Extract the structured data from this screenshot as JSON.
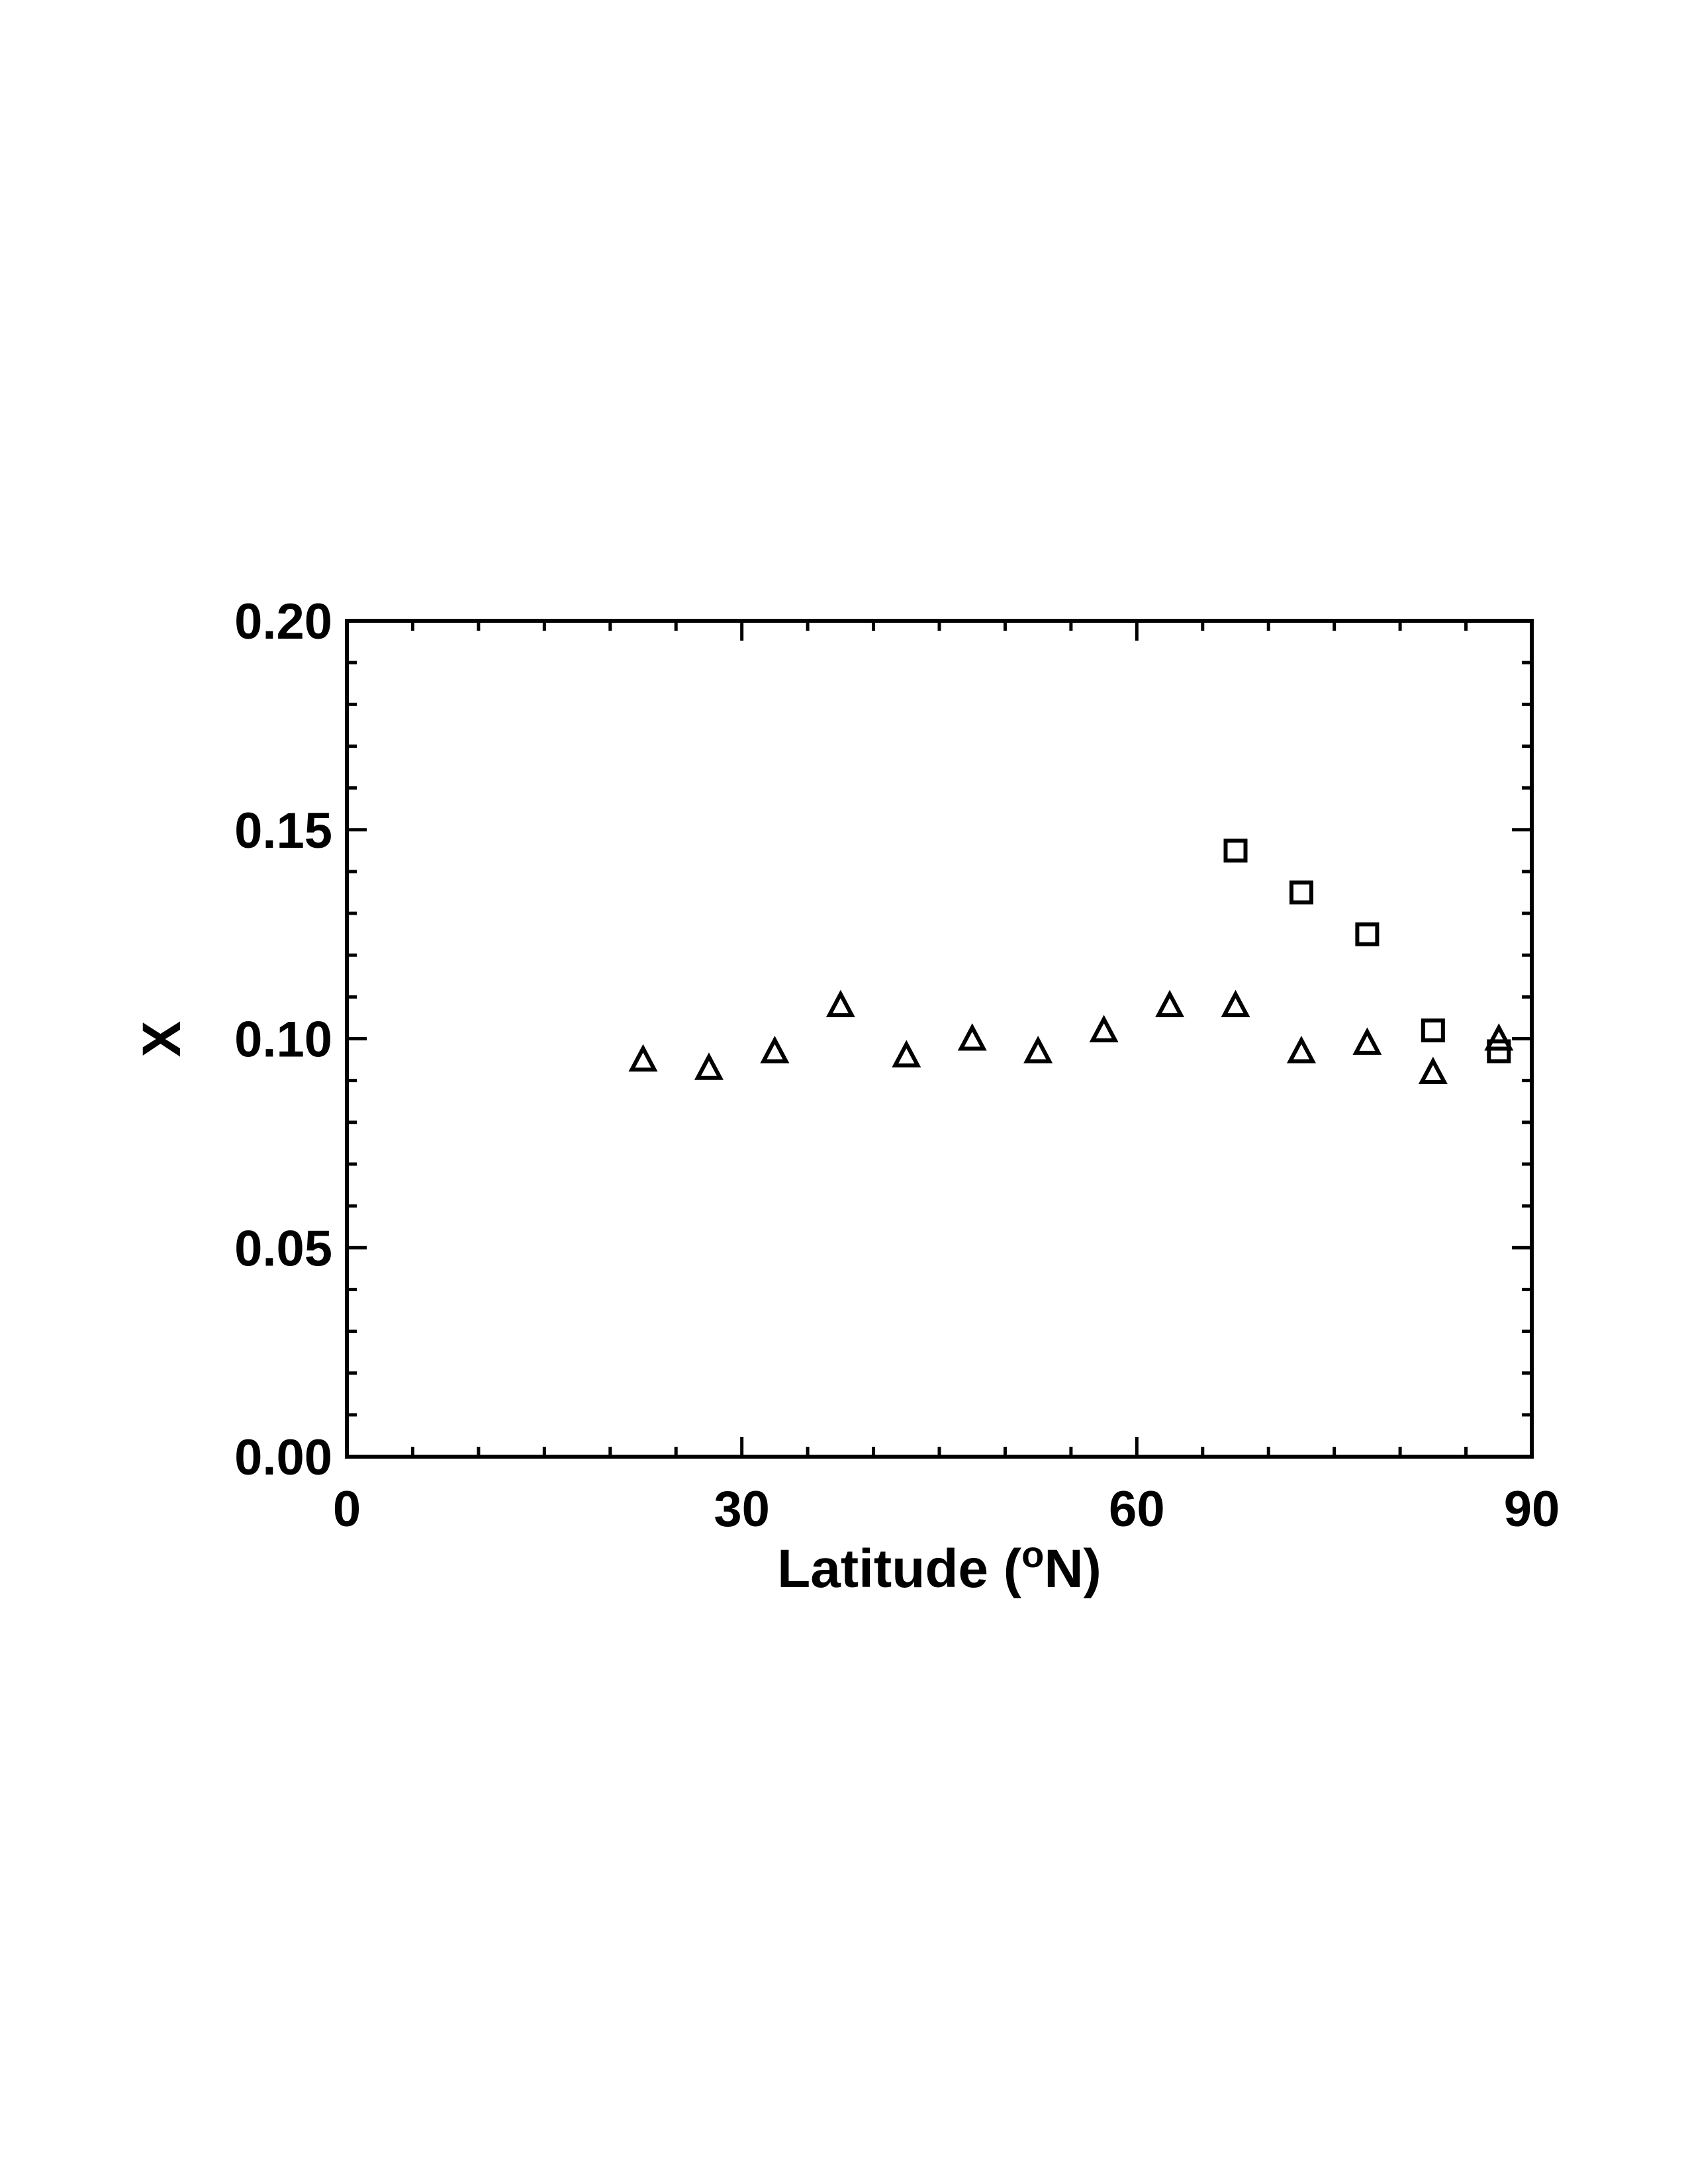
{
  "chart_data": {
    "type": "scatter",
    "xlabel": "Latitude (",
    "xlabel_degree": "o",
    "xlabel_suffix": "N)",
    "ylabel": "X",
    "xlim": [
      0,
      90
    ],
    "ylim": [
      0.0,
      0.2
    ],
    "x_ticks": [
      0,
      30,
      60,
      90
    ],
    "x_tick_labels": [
      "0",
      "30",
      "60",
      "90"
    ],
    "x_minor_step": 5,
    "y_ticks": [
      0.0,
      0.05,
      0.1,
      0.15,
      0.2
    ],
    "y_tick_labels": [
      "0.00",
      "0.05",
      "0.10",
      "0.15",
      "0.20"
    ],
    "y_minor_step": 0.01,
    "grid": false,
    "series": [
      {
        "marker": "triangle",
        "x": [
          22.5,
          27.5,
          32.5,
          37.5,
          42.5,
          47.5,
          52.5,
          57.5,
          62.5,
          67.5,
          72.5,
          77.5,
          82.5,
          87.5
        ],
        "y": [
          0.095,
          0.093,
          0.097,
          0.108,
          0.096,
          0.1,
          0.097,
          0.102,
          0.108,
          0.108,
          0.097,
          0.099,
          0.092,
          0.1
        ]
      },
      {
        "marker": "square",
        "x": [
          67.5,
          72.5,
          77.5,
          82.5,
          87.5
        ],
        "y": [
          0.145,
          0.135,
          0.125,
          0.102,
          0.097
        ]
      }
    ],
    "colors": {
      "ink": "#000000",
      "background": "#ffffff"
    }
  }
}
